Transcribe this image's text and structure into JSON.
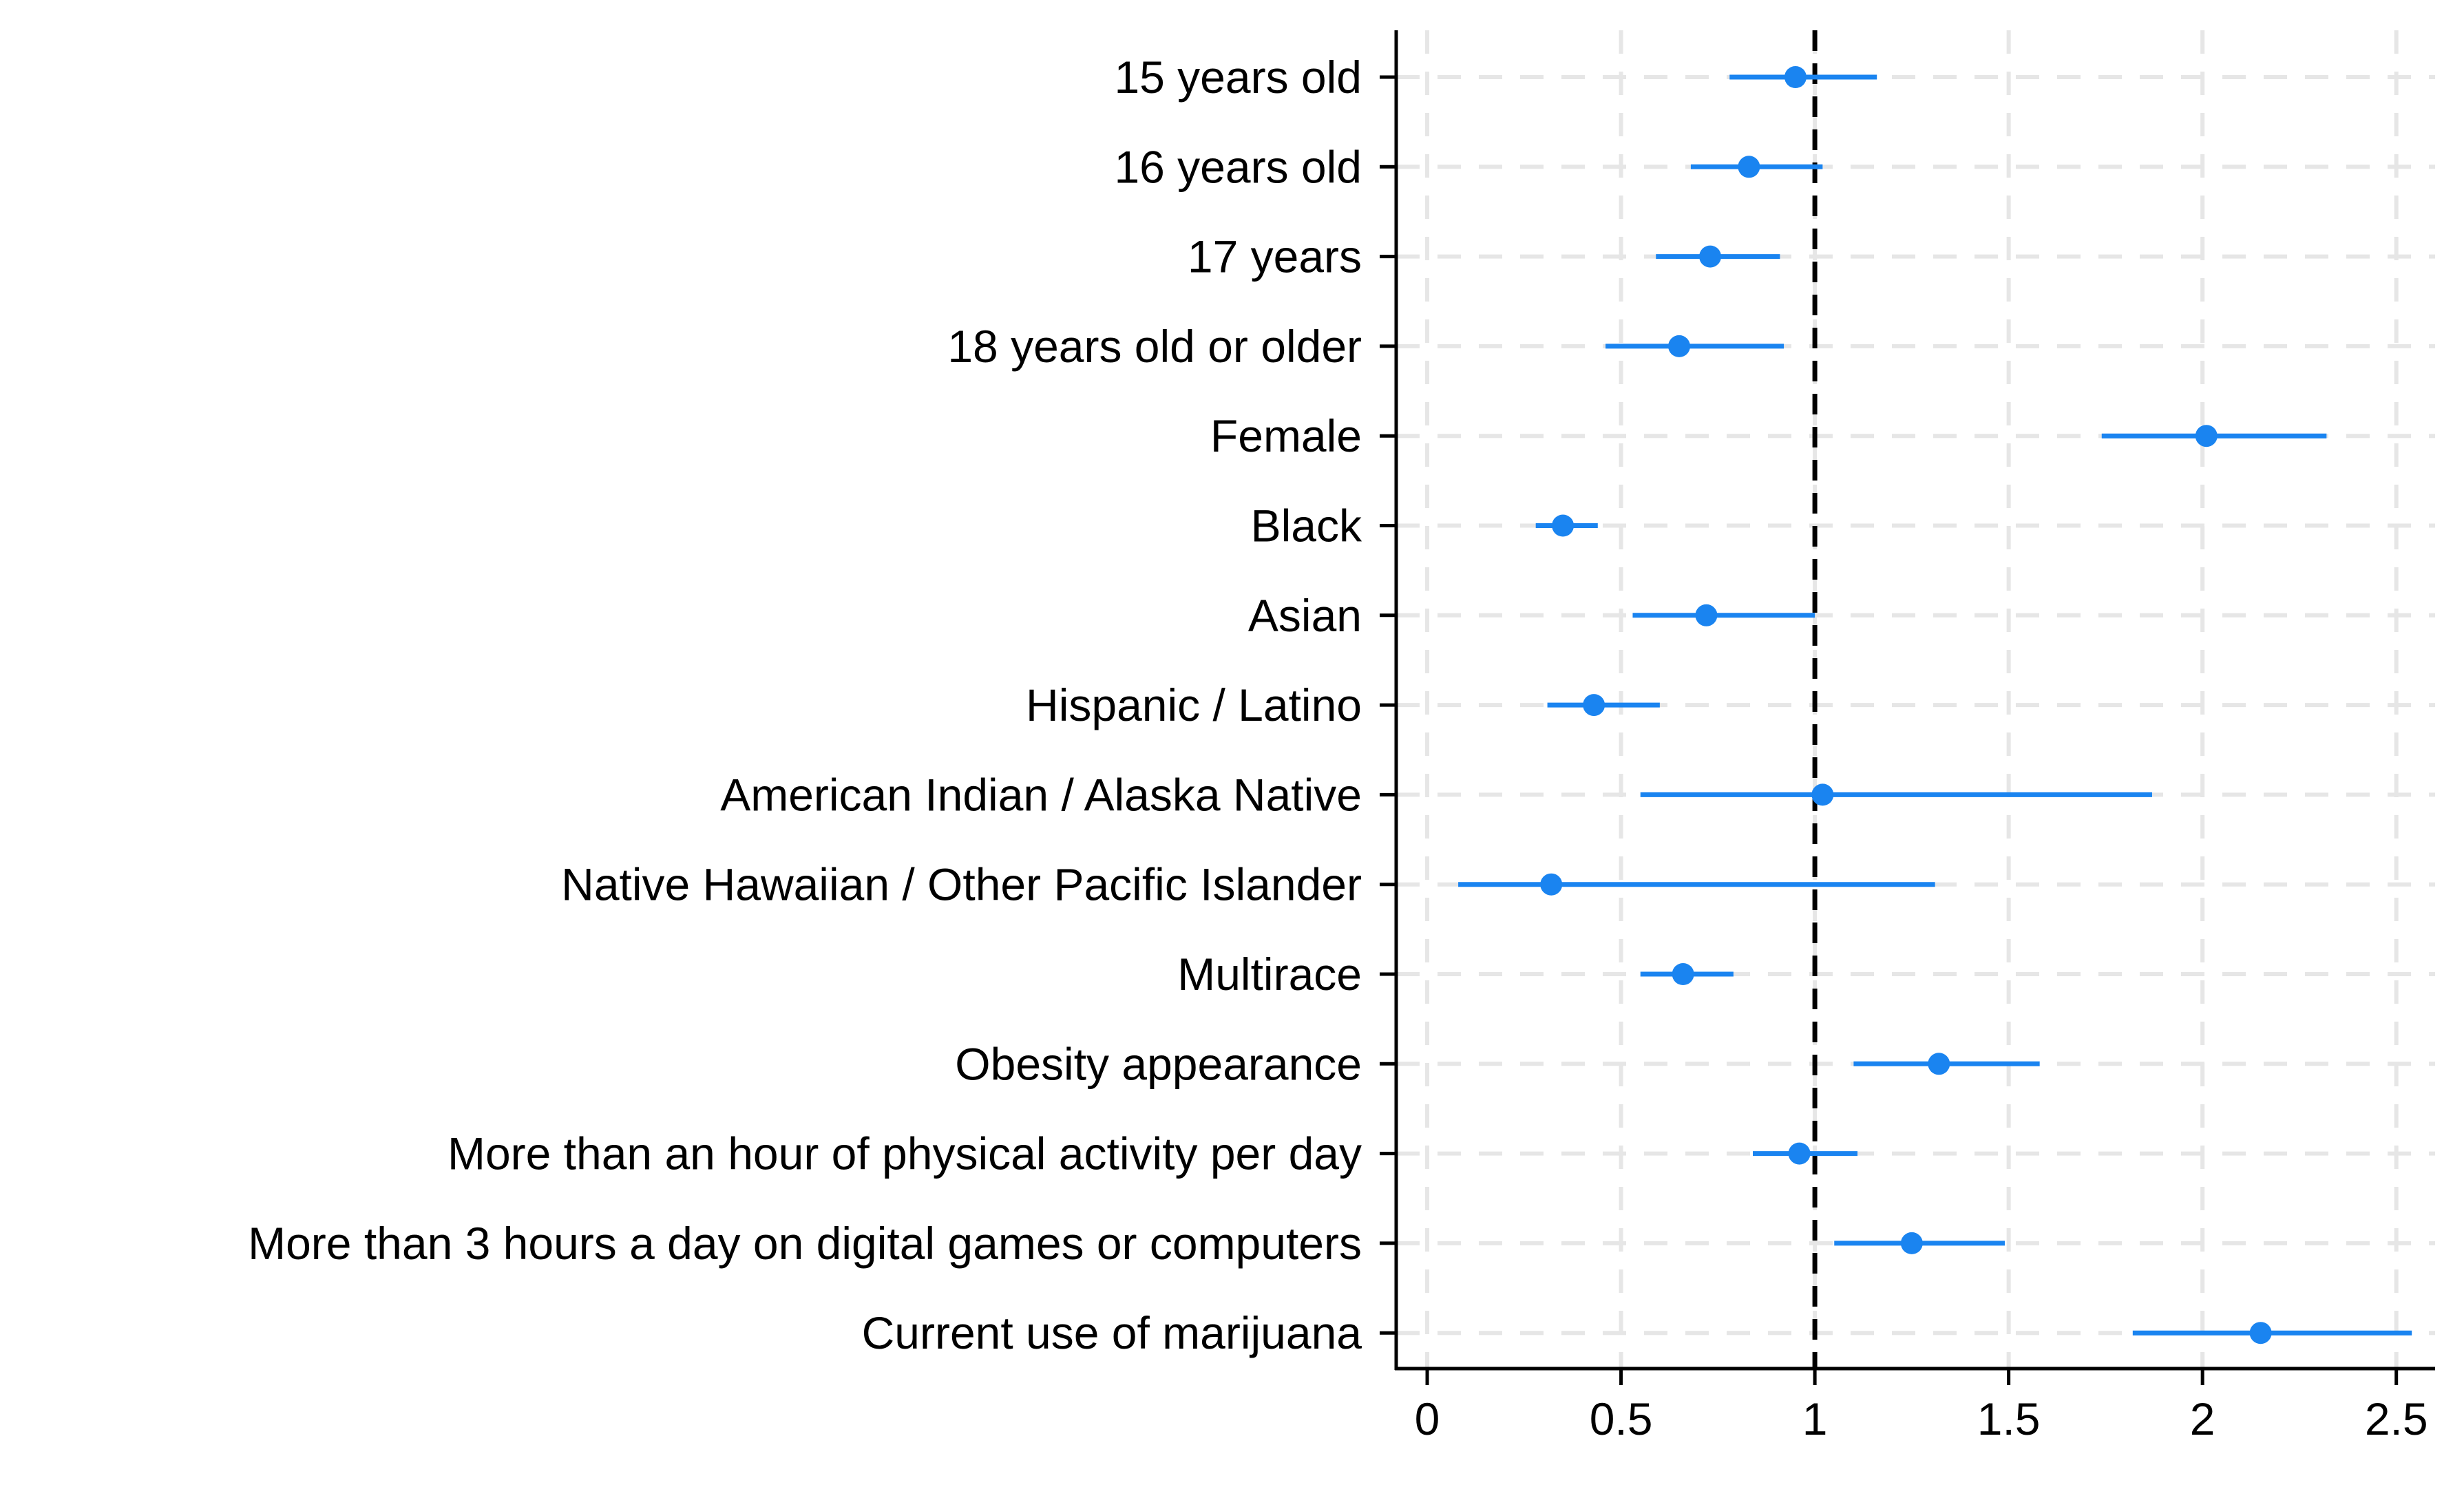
{
  "chart_data": {
    "type": "forest",
    "title": "",
    "xlabel": "",
    "ylabel": "",
    "xlim": [
      -0.08,
      2.6
    ],
    "xticks": [
      0,
      0.5,
      1,
      1.5,
      2,
      2.5
    ],
    "xtick_labels": [
      "0",
      "0.5",
      "1",
      "1.5",
      "2",
      "2.5"
    ],
    "reference_line": 1,
    "grid": true,
    "marker_color": "#1a84f0",
    "reference_color": "#000000",
    "grid_color": "#e6e6e6",
    "rows": [
      {
        "label": "15 years old",
        "estimate": 0.95,
        "lower": 0.78,
        "upper": 1.16
      },
      {
        "label": "16 years old",
        "estimate": 0.83,
        "lower": 0.68,
        "upper": 1.02
      },
      {
        "label": "17 years",
        "estimate": 0.73,
        "lower": 0.59,
        "upper": 0.91
      },
      {
        "label": "18 years old or older",
        "estimate": 0.65,
        "lower": 0.46,
        "upper": 0.92
      },
      {
        "label": "Female",
        "estimate": 2.01,
        "lower": 1.74,
        "upper": 2.32
      },
      {
        "label": "Black",
        "estimate": 0.35,
        "lower": 0.28,
        "upper": 0.44
      },
      {
        "label": "Asian",
        "estimate": 0.72,
        "lower": 0.53,
        "upper": 1.0
      },
      {
        "label": "Hispanic / Latino",
        "estimate": 0.43,
        "lower": 0.31,
        "upper": 0.6
      },
      {
        "label": "American Indian / Alaska Native",
        "estimate": 1.02,
        "lower": 0.55,
        "upper": 1.87
      },
      {
        "label": "Native Hawaiian / Other Pacific Islander",
        "estimate": 0.32,
        "lower": 0.08,
        "upper": 1.31
      },
      {
        "label": "Multirace",
        "estimate": 0.66,
        "lower": 0.55,
        "upper": 0.79
      },
      {
        "label": "Obesity appearance",
        "estimate": 1.32,
        "lower": 1.1,
        "upper": 1.58
      },
      {
        "label": "More than an hour of physical activity per day",
        "estimate": 0.96,
        "lower": 0.84,
        "upper": 1.11
      },
      {
        "label": "More than 3 hours a day on digital games or computers",
        "estimate": 1.25,
        "lower": 1.05,
        "upper": 1.49
      },
      {
        "label": "Current use of marijuana",
        "estimate": 2.15,
        "lower": 1.82,
        "upper": 2.54
      }
    ]
  }
}
